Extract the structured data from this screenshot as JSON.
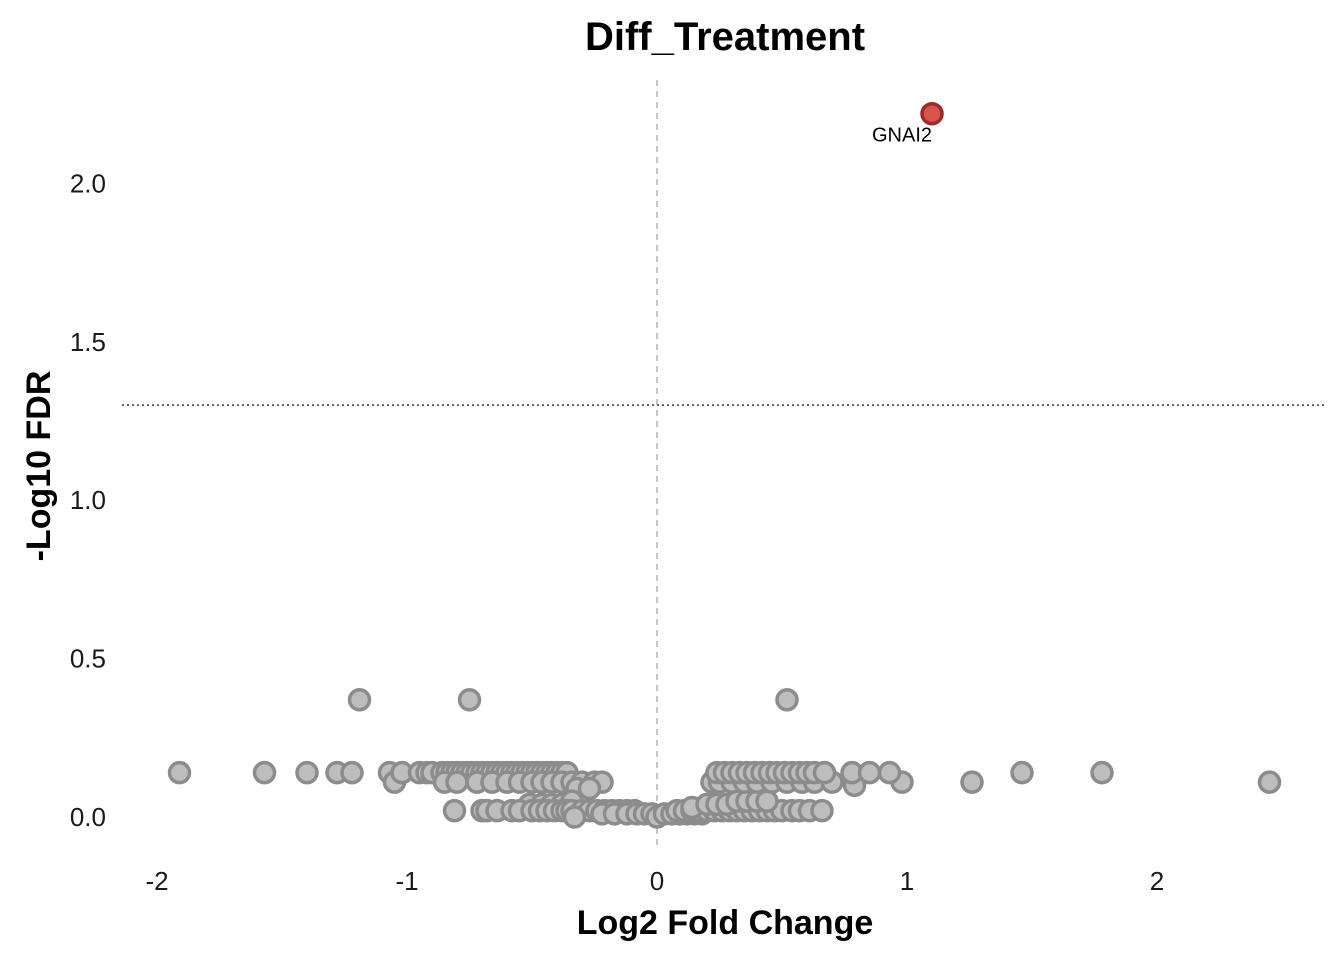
{
  "chart_data": {
    "type": "scatter",
    "title": "Diff_Treatment",
    "xlabel": "Log2 Fold Change",
    "ylabel": "-Log10 FDR",
    "xlim": [
      -2.2,
      2.72
    ],
    "ylim": [
      -0.1,
      2.4
    ],
    "xticks": [
      -2,
      -1,
      0,
      1,
      2
    ],
    "xtick_labels": [
      "-2",
      "-1",
      "0",
      "1",
      "2"
    ],
    "yticks": [
      0.0,
      0.5,
      1.0,
      1.5,
      2.0
    ],
    "ytick_labels": [
      "0.0",
      "0.5",
      "1.0",
      "1.5",
      "2.0"
    ],
    "grid": false,
    "reference_lines": {
      "vertical_x": 0,
      "horizontal_y": 1.3
    },
    "colors": {
      "not_significant_fill": "#bdbdbd",
      "not_significant_stroke": "#8c8c8c",
      "significant_fill": "#d9534f",
      "significant_stroke": "#9e2a2a",
      "reference_line": "#b3b3b3"
    },
    "series": [
      {
        "name": "",
        "points": [
          {
            "x": -1.91,
            "y": 0.14
          },
          {
            "x": -1.57,
            "y": 0.14
          },
          {
            "x": -1.4,
            "y": 0.14
          },
          {
            "x": -1.28,
            "y": 0.14
          },
          {
            "x": -1.22,
            "y": 0.14
          },
          {
            "x": -1.19,
            "y": 0.37
          },
          {
            "x": -1.07,
            "y": 0.14
          },
          {
            "x": -1.05,
            "y": 0.11
          },
          {
            "x": -1.02,
            "y": 0.14
          },
          {
            "x": -0.95,
            "y": 0.14
          },
          {
            "x": -0.92,
            "y": 0.14
          },
          {
            "x": -0.9,
            "y": 0.14
          },
          {
            "x": -0.86,
            "y": 0.14
          },
          {
            "x": -0.84,
            "y": 0.14
          },
          {
            "x": -0.82,
            "y": 0.14
          },
          {
            "x": -0.8,
            "y": 0.14
          },
          {
            "x": -0.78,
            "y": 0.14
          },
          {
            "x": -0.76,
            "y": 0.14
          },
          {
            "x": -0.74,
            "y": 0.14
          },
          {
            "x": -0.72,
            "y": 0.14
          },
          {
            "x": -0.7,
            "y": 0.14
          },
          {
            "x": -0.68,
            "y": 0.14
          },
          {
            "x": -0.66,
            "y": 0.14
          },
          {
            "x": -0.64,
            "y": 0.14
          },
          {
            "x": -0.62,
            "y": 0.14
          },
          {
            "x": -0.6,
            "y": 0.14
          },
          {
            "x": -0.58,
            "y": 0.14
          },
          {
            "x": -0.56,
            "y": 0.14
          },
          {
            "x": -0.54,
            "y": 0.14
          },
          {
            "x": -0.52,
            "y": 0.14
          },
          {
            "x": -0.5,
            "y": 0.14
          },
          {
            "x": -0.48,
            "y": 0.14
          },
          {
            "x": -0.46,
            "y": 0.14
          },
          {
            "x": -0.44,
            "y": 0.14
          },
          {
            "x": -0.42,
            "y": 0.14
          },
          {
            "x": -0.4,
            "y": 0.14
          },
          {
            "x": -0.38,
            "y": 0.14
          },
          {
            "x": -0.36,
            "y": 0.14
          },
          {
            "x": -0.75,
            "y": 0.37
          },
          {
            "x": -0.85,
            "y": 0.11
          },
          {
            "x": -0.8,
            "y": 0.11
          },
          {
            "x": -0.72,
            "y": 0.11
          },
          {
            "x": -0.66,
            "y": 0.11
          },
          {
            "x": -0.6,
            "y": 0.11
          },
          {
            "x": -0.55,
            "y": 0.11
          },
          {
            "x": -0.5,
            "y": 0.11
          },
          {
            "x": -0.46,
            "y": 0.11
          },
          {
            "x": -0.42,
            "y": 0.11
          },
          {
            "x": -0.38,
            "y": 0.11
          },
          {
            "x": -0.34,
            "y": 0.11
          },
          {
            "x": -0.3,
            "y": 0.11
          },
          {
            "x": -0.25,
            "y": 0.11
          },
          {
            "x": -0.22,
            "y": 0.11
          },
          {
            "x": -0.32,
            "y": 0.09
          },
          {
            "x": -0.27,
            "y": 0.09
          },
          {
            "x": -0.51,
            "y": 0.04
          },
          {
            "x": -0.46,
            "y": 0.04
          },
          {
            "x": -0.42,
            "y": 0.04
          },
          {
            "x": -0.38,
            "y": 0.04
          },
          {
            "x": -0.34,
            "y": 0.05
          },
          {
            "x": -0.81,
            "y": 0.02
          },
          {
            "x": -0.7,
            "y": 0.02
          },
          {
            "x": -0.68,
            "y": 0.02
          },
          {
            "x": -0.64,
            "y": 0.02
          },
          {
            "x": -0.58,
            "y": 0.02
          },
          {
            "x": -0.55,
            "y": 0.02
          },
          {
            "x": -0.5,
            "y": 0.02
          },
          {
            "x": -0.47,
            "y": 0.02
          },
          {
            "x": -0.44,
            "y": 0.02
          },
          {
            "x": -0.41,
            "y": 0.02
          },
          {
            "x": -0.38,
            "y": 0.02
          },
          {
            "x": -0.36,
            "y": 0.02
          },
          {
            "x": -0.34,
            "y": 0.02
          },
          {
            "x": -0.3,
            "y": 0.02
          },
          {
            "x": -0.27,
            "y": 0.02
          },
          {
            "x": -0.24,
            "y": 0.02
          },
          {
            "x": -0.21,
            "y": 0.02
          },
          {
            "x": -0.18,
            "y": 0.02
          },
          {
            "x": -0.15,
            "y": 0.02
          },
          {
            "x": -0.12,
            "y": 0.02
          },
          {
            "x": -0.09,
            "y": 0.02
          },
          {
            "x": -0.33,
            "y": 0.0
          },
          {
            "x": -0.22,
            "y": 0.01
          },
          {
            "x": -0.17,
            "y": 0.01
          },
          {
            "x": -0.12,
            "y": 0.01
          },
          {
            "x": -0.08,
            "y": 0.01
          },
          {
            "x": -0.05,
            "y": 0.01
          },
          {
            "x": -0.02,
            "y": 0.01
          },
          {
            "x": 0.0,
            "y": 0.0
          },
          {
            "x": 0.03,
            "y": 0.01
          },
          {
            "x": 0.06,
            "y": 0.01
          },
          {
            "x": 0.09,
            "y": 0.01
          },
          {
            "x": 0.12,
            "y": 0.01
          },
          {
            "x": 0.15,
            "y": 0.01
          },
          {
            "x": 0.18,
            "y": 0.01
          },
          {
            "x": 0.08,
            "y": 0.02
          },
          {
            "x": 0.11,
            "y": 0.02
          },
          {
            "x": 0.14,
            "y": 0.02
          },
          {
            "x": 0.17,
            "y": 0.02
          },
          {
            "x": 0.2,
            "y": 0.02
          },
          {
            "x": 0.23,
            "y": 0.02
          },
          {
            "x": 0.26,
            "y": 0.02
          },
          {
            "x": 0.29,
            "y": 0.02
          },
          {
            "x": 0.32,
            "y": 0.02
          },
          {
            "x": 0.35,
            "y": 0.02
          },
          {
            "x": 0.38,
            "y": 0.02
          },
          {
            "x": 0.41,
            "y": 0.02
          },
          {
            "x": 0.44,
            "y": 0.02
          },
          {
            "x": 0.47,
            "y": 0.02
          },
          {
            "x": 0.5,
            "y": 0.02
          },
          {
            "x": 0.54,
            "y": 0.02
          },
          {
            "x": 0.57,
            "y": 0.02
          },
          {
            "x": 0.61,
            "y": 0.02
          },
          {
            "x": 0.66,
            "y": 0.02
          },
          {
            "x": 0.14,
            "y": 0.03
          },
          {
            "x": 0.2,
            "y": 0.04
          },
          {
            "x": 0.24,
            "y": 0.04
          },
          {
            "x": 0.28,
            "y": 0.04
          },
          {
            "x": 0.32,
            "y": 0.05
          },
          {
            "x": 0.36,
            "y": 0.05
          },
          {
            "x": 0.4,
            "y": 0.05
          },
          {
            "x": 0.44,
            "y": 0.05
          },
          {
            "x": 0.22,
            "y": 0.11
          },
          {
            "x": 0.25,
            "y": 0.11
          },
          {
            "x": 0.3,
            "y": 0.11
          },
          {
            "x": 0.35,
            "y": 0.11
          },
          {
            "x": 0.4,
            "y": 0.11
          },
          {
            "x": 0.46,
            "y": 0.11
          },
          {
            "x": 0.52,
            "y": 0.11
          },
          {
            "x": 0.58,
            "y": 0.11
          },
          {
            "x": 0.63,
            "y": 0.11
          },
          {
            "x": 0.7,
            "y": 0.11
          },
          {
            "x": 0.79,
            "y": 0.1
          },
          {
            "x": 0.98,
            "y": 0.11
          },
          {
            "x": 1.26,
            "y": 0.11
          },
          {
            "x": 2.45,
            "y": 0.11
          },
          {
            "x": 0.24,
            "y": 0.14
          },
          {
            "x": 0.27,
            "y": 0.14
          },
          {
            "x": 0.3,
            "y": 0.14
          },
          {
            "x": 0.33,
            "y": 0.14
          },
          {
            "x": 0.36,
            "y": 0.14
          },
          {
            "x": 0.39,
            "y": 0.14
          },
          {
            "x": 0.42,
            "y": 0.14
          },
          {
            "x": 0.45,
            "y": 0.14
          },
          {
            "x": 0.48,
            "y": 0.14
          },
          {
            "x": 0.51,
            "y": 0.14
          },
          {
            "x": 0.54,
            "y": 0.14
          },
          {
            "x": 0.57,
            "y": 0.14
          },
          {
            "x": 0.6,
            "y": 0.14
          },
          {
            "x": 0.63,
            "y": 0.14
          },
          {
            "x": 0.67,
            "y": 0.14
          },
          {
            "x": 0.78,
            "y": 0.14
          },
          {
            "x": 0.85,
            "y": 0.14
          },
          {
            "x": 0.93,
            "y": 0.14
          },
          {
            "x": 1.46,
            "y": 0.14
          },
          {
            "x": 1.78,
            "y": 0.14
          },
          {
            "x": 0.52,
            "y": 0.37
          }
        ]
      },
      {
        "name": "",
        "significant": true,
        "points": [
          {
            "x": 1.1,
            "y": 2.22,
            "label": "GNAI2"
          }
        ]
      }
    ]
  }
}
